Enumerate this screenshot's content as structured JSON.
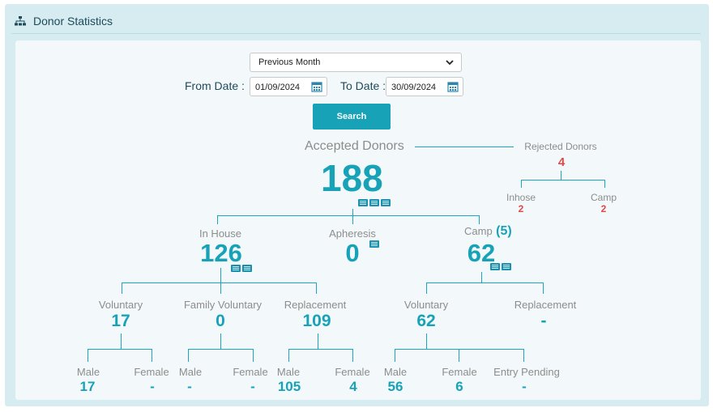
{
  "header": {
    "title": "Donor Statistics",
    "icon": "sitemap-icon"
  },
  "filters": {
    "period": "Previous Month",
    "from_label": "From Date :",
    "from_value": "01/09/2024",
    "to_label": "To Date :",
    "to_value": "30/09/2024",
    "search_label": "Search"
  },
  "accepted": {
    "label": "Accepted Donors",
    "value": "188"
  },
  "rejected": {
    "label": "Rejected Donors",
    "value": "4",
    "inhose": {
      "label": "Inhose",
      "value": "2"
    },
    "camp": {
      "label": "Camp",
      "value": "2"
    }
  },
  "inhouse": {
    "label": "In House",
    "value": "126",
    "voluntary": {
      "label": "Voluntary",
      "value": "17",
      "male_label": "Male",
      "male": "17",
      "female_label": "Female",
      "female": "-"
    },
    "family": {
      "label": "Family Voluntary",
      "value": "0",
      "male_label": "Male",
      "male": "-",
      "female_label": "Female",
      "female": "-"
    },
    "replacement": {
      "label": "Replacement",
      "value": "109",
      "male_label": "Male",
      "male": "105",
      "female_label": "Female",
      "female": "4"
    }
  },
  "apheresis": {
    "label": "Apheresis",
    "value": "0"
  },
  "camp": {
    "label": "Camp",
    "count": "(5)",
    "value": "62",
    "voluntary": {
      "label": "Voluntary",
      "value": "62",
      "male_label": "Male",
      "male": "56",
      "female_label": "Female",
      "female": "6",
      "pending_label": "Entry Pending",
      "pending": "-"
    },
    "replacement": {
      "label": "Replacement",
      "value": "-"
    }
  },
  "colors": {
    "accent": "#17a2b8",
    "rejected": "#e04848",
    "muted": "#8c8c8c"
  }
}
